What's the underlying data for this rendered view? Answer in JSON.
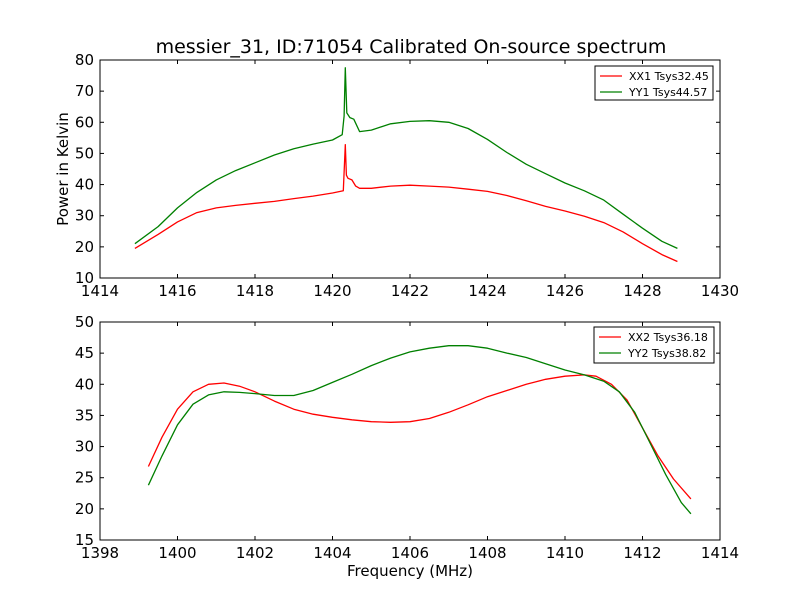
{
  "figure": {
    "title": "messier_31, ID:71054 Calibrated On-source spectrum",
    "colors": {
      "red": "#ff0000",
      "green": "#008000"
    }
  },
  "chart_data": [
    {
      "type": "line",
      "title": "messier_31, ID:71054 Calibrated On-source spectrum",
      "xlabel": "",
      "ylabel": "Power in Kelvin",
      "xlim": [
        1414,
        1430
      ],
      "ylim": [
        10,
        80
      ],
      "xticks": [
        1414,
        1416,
        1418,
        1420,
        1422,
        1424,
        1426,
        1428,
        1430
      ],
      "yticks": [
        10,
        20,
        30,
        40,
        50,
        60,
        70,
        80
      ],
      "legend": "top-right",
      "grid": false,
      "series": [
        {
          "name": "XX1 Tsys32.45",
          "color": "#ff0000",
          "x": [
            1414.9,
            1415.5,
            1416.0,
            1416.5,
            1417.0,
            1417.5,
            1418.0,
            1418.5,
            1419.0,
            1419.5,
            1420.0,
            1420.28,
            1420.33,
            1420.36,
            1420.4,
            1420.5,
            1420.6,
            1420.7,
            1421.0,
            1421.5,
            1422.0,
            1422.5,
            1423.0,
            1423.5,
            1424.0,
            1424.5,
            1425.0,
            1425.5,
            1426.0,
            1426.5,
            1427.0,
            1427.5,
            1428.0,
            1428.5,
            1428.9
          ],
          "y": [
            19.5,
            24.0,
            28.0,
            31.0,
            32.5,
            33.3,
            34.0,
            34.6,
            35.5,
            36.3,
            37.3,
            38.0,
            52.8,
            43.0,
            42.0,
            41.5,
            39.5,
            38.8,
            38.8,
            39.5,
            39.8,
            39.5,
            39.2,
            38.5,
            37.8,
            36.5,
            34.8,
            33.0,
            31.5,
            29.8,
            27.8,
            24.8,
            21.0,
            17.5,
            15.3
          ]
        },
        {
          "name": "YY1 Tsys44.57",
          "color": "#008000",
          "x": [
            1414.9,
            1415.5,
            1416.0,
            1416.5,
            1417.0,
            1417.5,
            1418.0,
            1418.5,
            1419.0,
            1419.5,
            1420.0,
            1420.25,
            1420.3,
            1420.33,
            1420.37,
            1420.45,
            1420.55,
            1420.7,
            1421.0,
            1421.5,
            1422.0,
            1422.5,
            1423.0,
            1423.5,
            1424.0,
            1424.5,
            1425.0,
            1425.5,
            1426.0,
            1426.5,
            1427.0,
            1427.5,
            1428.0,
            1428.5,
            1428.9
          ],
          "y": [
            21.0,
            26.5,
            32.5,
            37.5,
            41.5,
            44.5,
            47.0,
            49.5,
            51.5,
            53.0,
            54.3,
            56.0,
            62.0,
            77.5,
            63.0,
            61.5,
            61.0,
            57.0,
            57.5,
            59.5,
            60.3,
            60.5,
            60.0,
            58.0,
            54.5,
            50.3,
            46.5,
            43.5,
            40.5,
            38.0,
            35.0,
            30.5,
            26.0,
            21.8,
            19.5
          ]
        }
      ]
    },
    {
      "type": "line",
      "title": "",
      "xlabel": "Frequency (MHz)",
      "ylabel": "",
      "xlim": [
        1398,
        1414
      ],
      "ylim": [
        15,
        50
      ],
      "xticks": [
        1398,
        1400,
        1402,
        1404,
        1406,
        1408,
        1410,
        1412,
        1414
      ],
      "yticks": [
        15,
        20,
        25,
        30,
        35,
        40,
        45,
        50
      ],
      "legend": "top-right",
      "grid": false,
      "series": [
        {
          "name": "XX2 Tsys36.18",
          "color": "#ff0000",
          "x": [
            1399.25,
            1399.6,
            1400.0,
            1400.4,
            1400.8,
            1401.2,
            1401.6,
            1402.0,
            1402.5,
            1403.0,
            1403.5,
            1404.0,
            1404.5,
            1405.0,
            1405.5,
            1406.0,
            1406.5,
            1407.0,
            1407.5,
            1408.0,
            1408.5,
            1409.0,
            1409.5,
            1410.0,
            1410.5,
            1410.8,
            1411.2,
            1411.6,
            1412.0,
            1412.4,
            1412.8,
            1413.25
          ],
          "y": [
            26.8,
            31.5,
            36.0,
            38.8,
            40.0,
            40.2,
            39.7,
            38.8,
            37.3,
            36.0,
            35.2,
            34.7,
            34.3,
            34.0,
            33.9,
            34.0,
            34.5,
            35.5,
            36.7,
            38.0,
            39.0,
            40.0,
            40.8,
            41.3,
            41.5,
            41.3,
            40.0,
            37.5,
            33.0,
            28.5,
            24.8,
            21.6
          ]
        },
        {
          "name": "YY2 Tsys38.82",
          "color": "#008000",
          "x": [
            1399.25,
            1399.6,
            1400.0,
            1400.4,
            1400.8,
            1401.2,
            1401.6,
            1402.0,
            1402.5,
            1403.0,
            1403.5,
            1404.0,
            1404.5,
            1405.0,
            1405.5,
            1406.0,
            1406.5,
            1407.0,
            1407.5,
            1408.0,
            1408.5,
            1409.0,
            1409.5,
            1410.0,
            1410.5,
            1411.0,
            1411.4,
            1411.8,
            1412.2,
            1412.6,
            1413.0,
            1413.25
          ],
          "y": [
            23.8,
            28.5,
            33.5,
            36.8,
            38.3,
            38.8,
            38.7,
            38.5,
            38.2,
            38.2,
            39.0,
            40.3,
            41.6,
            43.0,
            44.2,
            45.2,
            45.8,
            46.2,
            46.2,
            45.8,
            45.0,
            44.3,
            43.3,
            42.3,
            41.5,
            40.5,
            38.8,
            35.5,
            30.5,
            25.5,
            21.0,
            19.2
          ]
        }
      ]
    }
  ]
}
